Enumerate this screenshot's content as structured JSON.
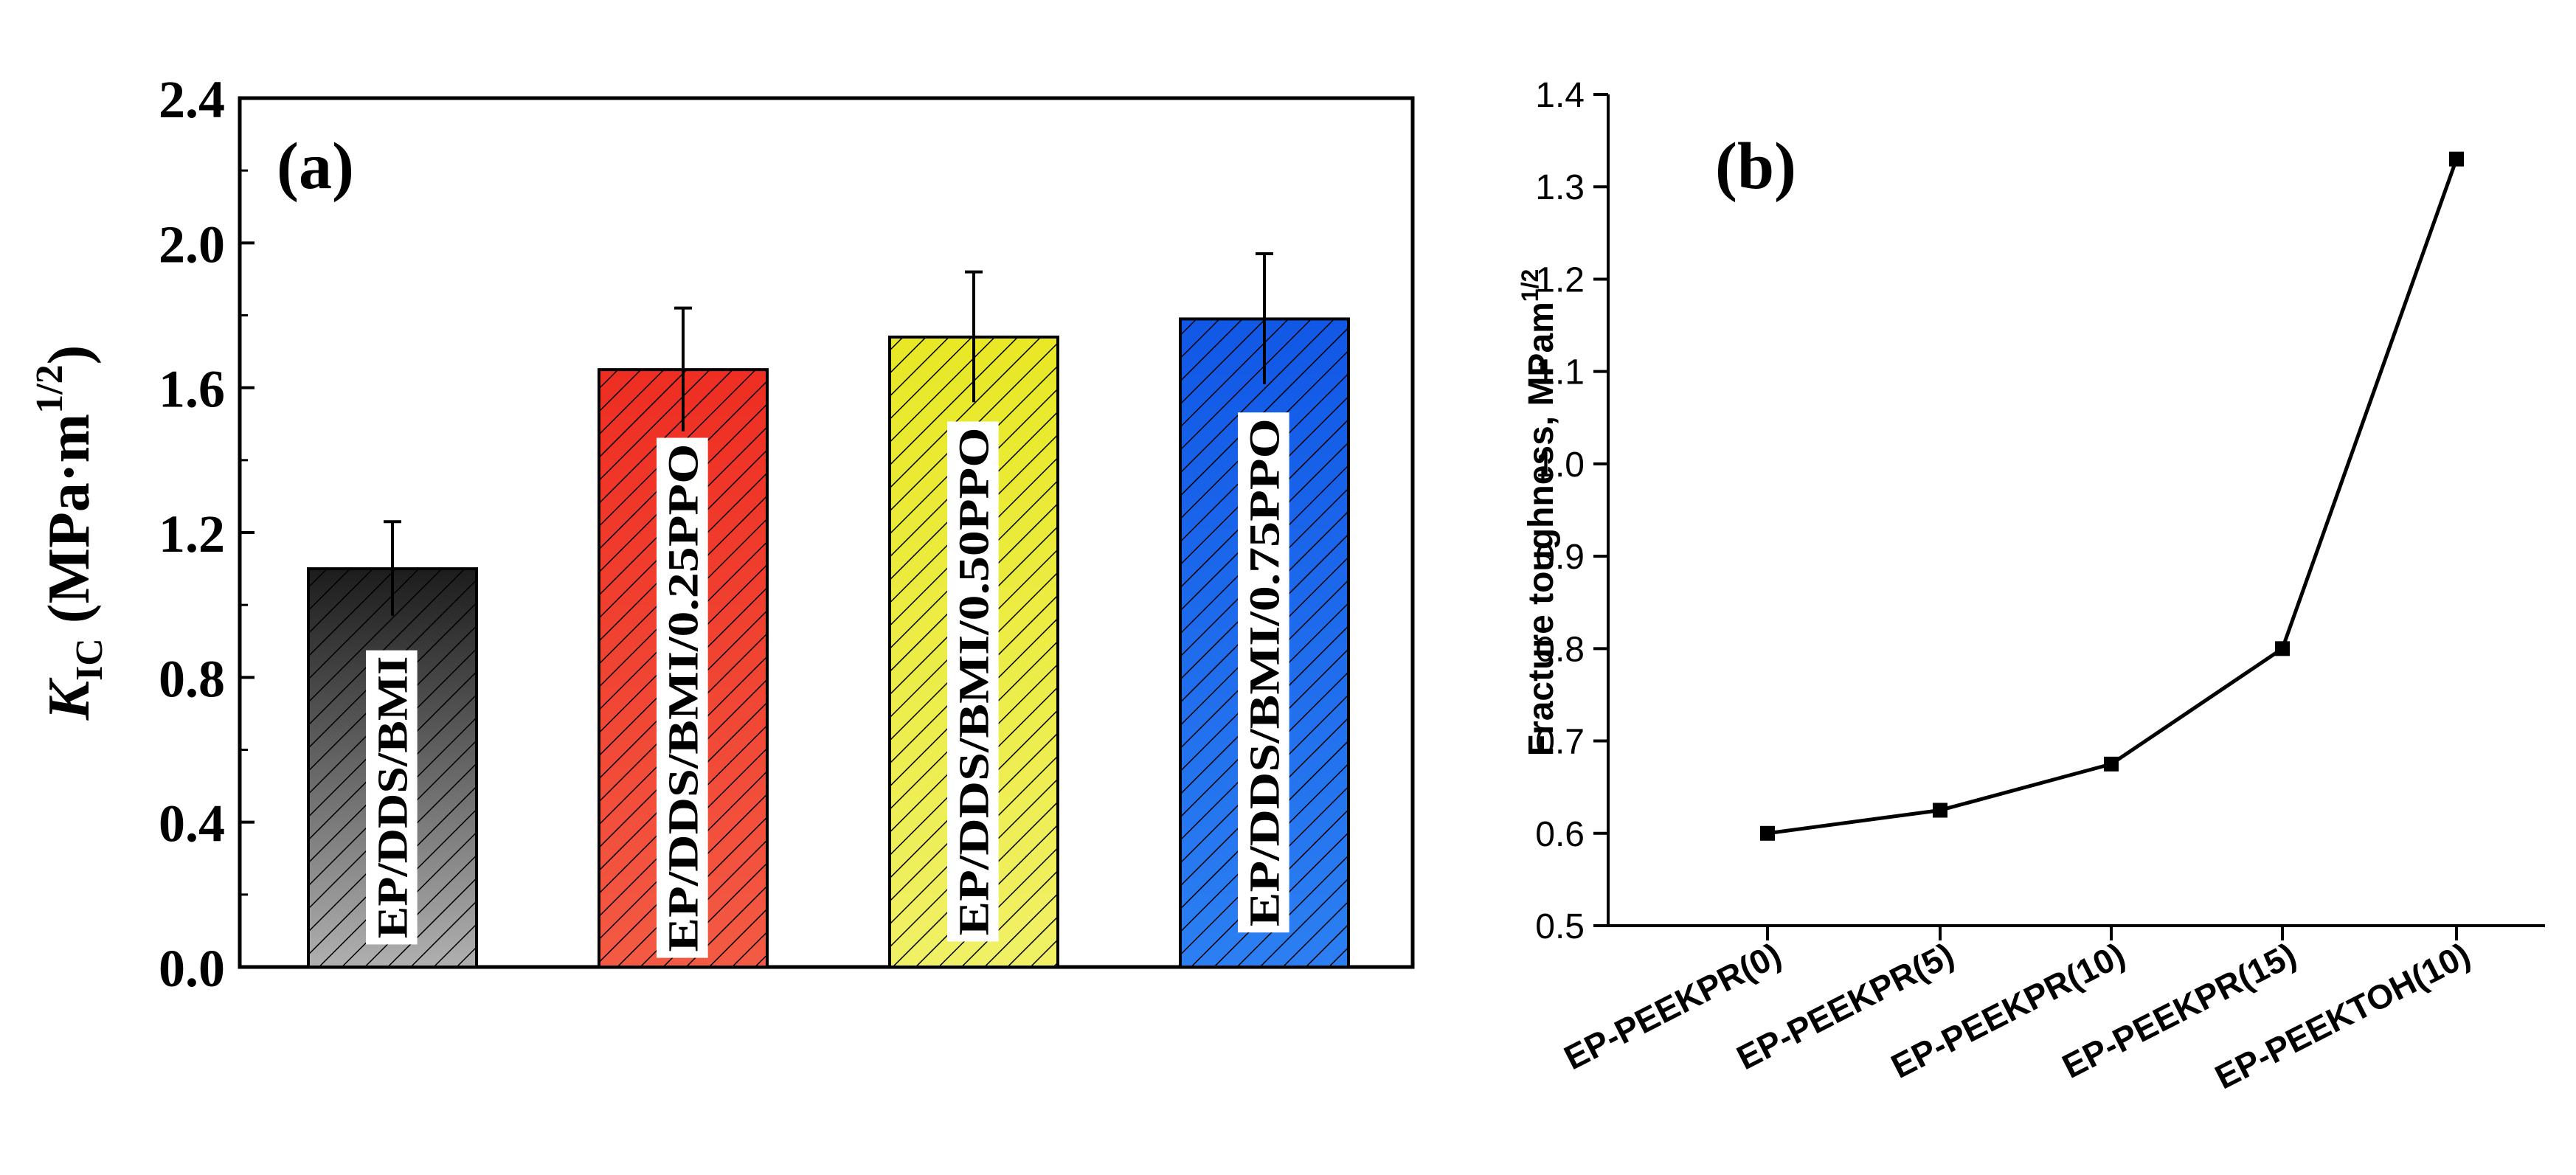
{
  "chart_data": [
    {
      "type": "bar",
      "panel_label": "(a)",
      "ylabel": {
        "symbol": "K",
        "subscript": "IC",
        "units_open": " (MPa·m",
        "superscript": "1/2",
        "units_close": ")"
      },
      "ylim": [
        0,
        2.4
      ],
      "yticks": [
        "0.0",
        "0.4",
        "0.8",
        "1.2",
        "1.6",
        "2.0",
        "2.4"
      ],
      "categories": [
        "EP/DDS/BMI",
        "EP/DDS/BMI/0.25PPO",
        "EP/DDS/BMI/0.50PPO",
        "EP/DDS/BMI/0.75PPO"
      ],
      "values": [
        1.1,
        1.65,
        1.74,
        1.79
      ],
      "errors": [
        0.13,
        0.17,
        0.18,
        0.18
      ],
      "colors": [
        "#1c1c1c",
        "#ee2e22",
        "#e8e826",
        "#1158e6"
      ],
      "gradient_bottom": [
        "#b0b0b0",
        "#f35a44",
        "#f0f066",
        "#2c7ff2"
      ],
      "grid": false
    },
    {
      "type": "line",
      "panel_label": "(b)",
      "ylabel": "Fracture toughness, MPam",
      "ylabel_superscript": "1/2",
      "ylim": [
        0.5,
        1.4
      ],
      "yticks": [
        "0.5",
        "0.6",
        "0.7",
        "0.8",
        "0.9",
        "1.0",
        "1.1",
        "1.2",
        "1.3",
        "1.4"
      ],
      "categories": [
        "EP-PEEKPR(0)",
        "EP-PEEKPR(5)",
        "EP-PEEKPR(10)",
        "EP-PEEKPR(15)",
        "EP-PEEKTOH(10)"
      ],
      "values": [
        0.6,
        0.625,
        0.675,
        0.8,
        1.33
      ],
      "marker": "square",
      "grid": false
    }
  ]
}
